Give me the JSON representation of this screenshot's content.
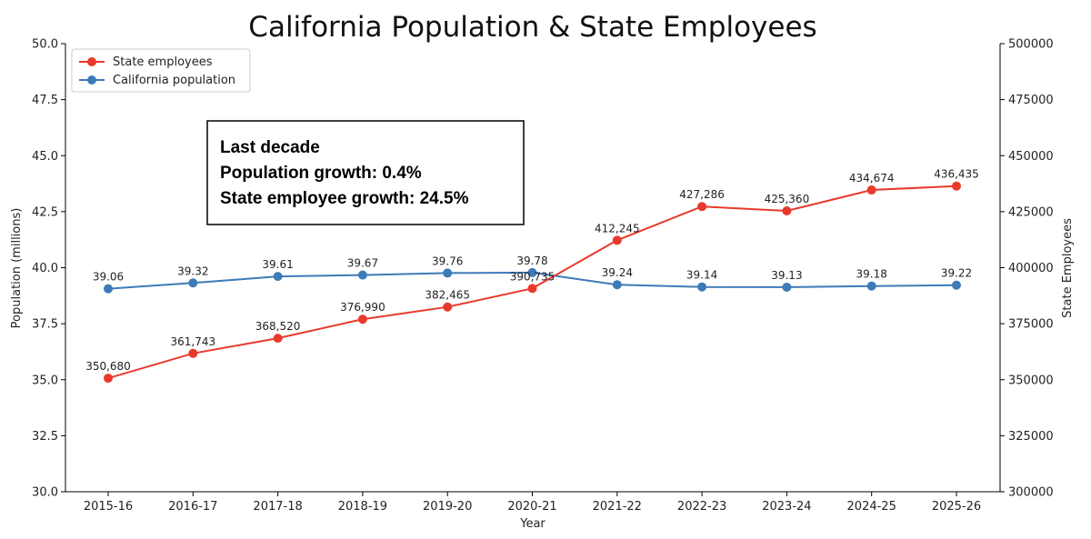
{
  "chart_data": {
    "type": "line",
    "title": "California Population & State Employees",
    "xlabel": "Year",
    "ylabel_left": "Population (millions)",
    "ylabel_right": "State Employees",
    "categories": [
      "2015-16",
      "2016-17",
      "2017-18",
      "2018-19",
      "2019-20",
      "2020-21",
      "2021-22",
      "2022-23",
      "2023-24",
      "2024-25",
      "2025-26"
    ],
    "ylim_left": [
      30.0,
      50.0
    ],
    "ylim_right": [
      300000,
      500000
    ],
    "yticks_left": [
      "30.0",
      "32.5",
      "35.0",
      "37.5",
      "40.0",
      "42.5",
      "45.0",
      "47.5",
      "50.0"
    ],
    "yticks_right": [
      "300000",
      "325000",
      "350000",
      "375000",
      "400000",
      "425000",
      "450000",
      "475000",
      "500000"
    ],
    "grid": false,
    "legend_position": "top-left",
    "series": [
      {
        "name": "State employees",
        "axis": "right",
        "color": "#e8392c",
        "values": [
          350680,
          361743,
          368520,
          376990,
          382465,
          390735,
          412245,
          427286,
          425360,
          434674,
          436435
        ],
        "labels": [
          "350,680",
          "361,743",
          "368,520",
          "376,990",
          "382,465",
          "390,735",
          "412,245",
          "427,286",
          "425,360",
          "434,674",
          "436,435"
        ]
      },
      {
        "name": "California population",
        "axis": "left",
        "color": "#3d7ab8",
        "values": [
          39.06,
          39.32,
          39.61,
          39.67,
          39.76,
          39.78,
          39.24,
          39.14,
          39.13,
          39.18,
          39.22
        ],
        "labels": [
          "39.06",
          "39.32",
          "39.61",
          "39.67",
          "39.76",
          "39.78",
          "39.24",
          "39.14",
          "39.13",
          "39.18",
          "39.22"
        ]
      }
    ],
    "annotation": {
      "lines": [
        "Last decade",
        "Population growth: 0.4%",
        "State employee growth: 24.5%"
      ]
    }
  }
}
